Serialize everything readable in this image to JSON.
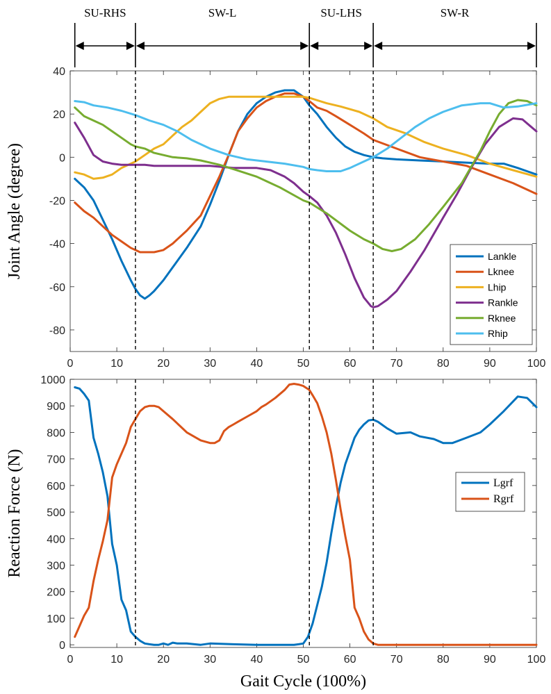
{
  "phases": {
    "labels": [
      "SU-RHS",
      "SW-L",
      "SU-LHS",
      "SW-R"
    ],
    "boundaries": [
      1,
      14,
      51.3,
      65,
      100
    ]
  },
  "chart_data": [
    {
      "type": "line",
      "title": "",
      "xlabel": "",
      "ylabel": "Joint Angle (degree)",
      "xlim": [
        0,
        100
      ],
      "ylim": [
        -90,
        40
      ],
      "xticks": [
        0,
        10,
        20,
        30,
        40,
        50,
        60,
        70,
        80,
        90,
        100
      ],
      "yticks": [
        -80,
        -60,
        -40,
        -20,
        0,
        20,
        40
      ],
      "legend_position": "bottom-right",
      "series": [
        {
          "name": "Lankle",
          "color": "#0072BD",
          "x": [
            1,
            3,
            5,
            7,
            9,
            11,
            13,
            14,
            15,
            16,
            17,
            18,
            20,
            22,
            25,
            28,
            30,
            32,
            34,
            36,
            38,
            40,
            42,
            44,
            46,
            48,
            50,
            51.3,
            53,
            55,
            57,
            59,
            61,
            63,
            65,
            67,
            70,
            75,
            80,
            85,
            90,
            93,
            96,
            100
          ],
          "y": [
            -10,
            -14,
            -20,
            -29,
            -38,
            -48,
            -57,
            -61,
            -64,
            -65.5,
            -64,
            -62,
            -57,
            -51,
            -42,
            -32,
            -22,
            -11,
            1,
            12,
            20,
            25,
            28,
            30,
            31,
            31,
            28,
            24,
            20,
            14,
            9,
            5,
            2.5,
            1,
            0,
            -0.5,
            -1,
            -1.5,
            -2,
            -2.5,
            -3,
            -3,
            -5,
            -8
          ]
        },
        {
          "name": "Lknee",
          "color": "#D95319",
          "x": [
            1,
            3,
            5,
            7,
            9,
            11,
            13,
            14,
            15,
            16,
            18,
            20,
            22,
            25,
            28,
            30,
            32,
            34,
            36,
            38,
            40,
            42,
            44,
            46,
            48,
            50,
            51.3,
            53,
            55,
            57,
            60,
            63,
            65,
            70,
            75,
            80,
            85,
            90,
            95,
            100
          ],
          "y": [
            -21,
            -25,
            -28,
            -32,
            -36,
            -39,
            -42,
            -43,
            -44,
            -44,
            -44,
            -43,
            -40,
            -34,
            -27,
            -18,
            -9,
            1,
            12,
            18,
            23,
            26,
            28,
            29.5,
            29.5,
            28,
            26,
            23,
            21.5,
            19,
            15,
            11,
            8,
            4,
            0,
            -2,
            -4,
            -8,
            -12,
            -17
          ]
        },
        {
          "name": "Lhip",
          "color": "#EDB120",
          "x": [
            1,
            3,
            5,
            7,
            9,
            11,
            13,
            14,
            16,
            18,
            20,
            22,
            24,
            26,
            28,
            30,
            32,
            34,
            36,
            40,
            44,
            48,
            50,
            51.3,
            55,
            58,
            62,
            65,
            68,
            72,
            76,
            80,
            85,
            90,
            95,
            100
          ],
          "y": [
            -7,
            -8,
            -10,
            -9.5,
            -8,
            -5,
            -3,
            -2,
            1,
            4,
            6,
            10,
            14,
            17,
            21,
            25,
            27,
            28,
            28,
            28,
            28,
            28,
            28,
            27.5,
            25,
            23.5,
            21,
            18,
            14,
            11,
            7,
            4,
            1,
            -3,
            -6,
            -9
          ]
        },
        {
          "name": "Rankle",
          "color": "#7E2F8E",
          "x": [
            1,
            3,
            5,
            7,
            9,
            11,
            13,
            14,
            16,
            18,
            20,
            25,
            30,
            35,
            40,
            43,
            46,
            48,
            50,
            51.3,
            53,
            55,
            57,
            59,
            61,
            63,
            64.5,
            65,
            66,
            68,
            70,
            73,
            76,
            80,
            83,
            86,
            89,
            92,
            95,
            97,
            100
          ],
          "y": [
            16,
            9,
            1,
            -2,
            -3,
            -3.5,
            -3.5,
            -3.5,
            -3.5,
            -4,
            -4,
            -4,
            -4,
            -5,
            -5,
            -6,
            -9,
            -12,
            -16,
            -18,
            -21,
            -27,
            -35,
            -45,
            -56,
            -65,
            -69,
            -69.5,
            -69,
            -66,
            -62,
            -53,
            -43,
            -28,
            -17,
            -5,
            6,
            14,
            18,
            17.5,
            12
          ]
        },
        {
          "name": "Rknee",
          "color": "#77AC30",
          "x": [
            1,
            3,
            5,
            7,
            9,
            11,
            13,
            14,
            16,
            18,
            20,
            22,
            25,
            28,
            30,
            32,
            35,
            40,
            45,
            50,
            51.3,
            55,
            60,
            63,
            65,
            67,
            69,
            71,
            74,
            77,
            80,
            84,
            88,
            90,
            92,
            94,
            96,
            98,
            100
          ],
          "y": [
            23,
            19,
            17,
            15,
            12,
            9,
            6,
            5,
            4,
            2,
            1,
            0,
            -0.5,
            -1.5,
            -2.5,
            -3.5,
            -5.5,
            -9,
            -14,
            -20,
            -21,
            -26,
            -34,
            -38,
            -40,
            -42.5,
            -43.5,
            -42.5,
            -38,
            -31,
            -23,
            -12,
            3,
            12,
            20,
            25,
            26.5,
            26,
            24
          ]
        },
        {
          "name": "Rhip",
          "color": "#4DBEEE",
          "x": [
            1,
            3,
            5,
            8,
            11,
            14,
            17,
            20,
            23,
            26,
            30,
            34,
            38,
            42,
            46,
            50,
            51.3,
            53,
            55,
            58,
            60,
            63,
            65,
            68,
            71,
            74,
            77,
            80,
            84,
            88,
            90,
            93,
            96,
            100
          ],
          "y": [
            26,
            25.5,
            24,
            23,
            21.5,
            19.5,
            17,
            15,
            12,
            8,
            4,
            1,
            -1,
            -2,
            -3,
            -4.5,
            -5.5,
            -6,
            -6.5,
            -6.5,
            -5,
            -2,
            0,
            4,
            9,
            14,
            18,
            21,
            24,
            25,
            25,
            23,
            23.5,
            25
          ]
        }
      ]
    },
    {
      "type": "line",
      "title": "",
      "xlabel": "Gait Cycle (100%)",
      "ylabel": "Reaction Force (N)",
      "xlim": [
        0,
        100
      ],
      "ylim": [
        -10,
        1000
      ],
      "xticks": [
        0,
        10,
        20,
        30,
        40,
        50,
        60,
        70,
        80,
        90,
        100
      ],
      "yticks": [
        0,
        100,
        200,
        300,
        400,
        500,
        600,
        700,
        800,
        900,
        1000
      ],
      "legend_position": "right",
      "series": [
        {
          "name": "Lgrf",
          "color": "#0072BD",
          "x": [
            1,
            2,
            3,
            4,
            5,
            6,
            7,
            8,
            9,
            10,
            11,
            12,
            13,
            14,
            15,
            16,
            17,
            18,
            19,
            20,
            21,
            22,
            23,
            25,
            28,
            30,
            35,
            40,
            45,
            48,
            49,
            50,
            51,
            51.3,
            52,
            53,
            54,
            55,
            56,
            57,
            58,
            59,
            60,
            61,
            62,
            63,
            64,
            65,
            66,
            68,
            70,
            73,
            75,
            78,
            80,
            82,
            85,
            88,
            90,
            93,
            96,
            98,
            100
          ],
          "y": [
            970,
            965,
            945,
            920,
            780,
            720,
            650,
            560,
            380,
            300,
            170,
            130,
            50,
            30,
            15,
            5,
            2,
            0,
            0,
            5,
            0,
            8,
            5,
            5,
            0,
            5,
            2,
            0,
            0,
            0,
            2,
            5,
            30,
            45,
            80,
            150,
            220,
            310,
            420,
            520,
            610,
            680,
            730,
            780,
            810,
            830,
            845,
            848,
            840,
            815,
            795,
            800,
            785,
            775,
            760,
            760,
            780,
            800,
            830,
            880,
            935,
            930,
            895
          ]
        },
        {
          "name": "Rgrf",
          "color": "#D95319",
          "x": [
            1,
            2,
            3,
            4,
            5,
            6,
            7,
            8,
            9,
            10,
            11,
            12,
            13,
            14,
            15,
            16,
            17,
            18,
            19,
            20,
            22,
            25,
            28,
            30,
            31,
            32,
            33,
            34,
            35,
            36,
            38,
            40,
            41,
            42,
            44,
            46,
            47,
            48,
            49,
            50,
            51.3,
            52,
            53,
            54,
            55,
            56,
            57,
            58,
            59,
            60,
            61,
            62,
            63,
            64,
            65,
            66,
            70,
            80,
            90,
            100
          ],
          "y": [
            30,
            70,
            110,
            140,
            240,
            320,
            390,
            470,
            630,
            680,
            720,
            760,
            820,
            850,
            880,
            895,
            900,
            900,
            895,
            880,
            850,
            800,
            770,
            760,
            760,
            770,
            805,
            820,
            830,
            840,
            860,
            880,
            895,
            905,
            930,
            960,
            980,
            983,
            980,
            975,
            960,
            940,
            910,
            860,
            800,
            720,
            620,
            510,
            410,
            320,
            140,
            100,
            50,
            20,
            5,
            0,
            0,
            0,
            0,
            0
          ]
        }
      ]
    }
  ]
}
